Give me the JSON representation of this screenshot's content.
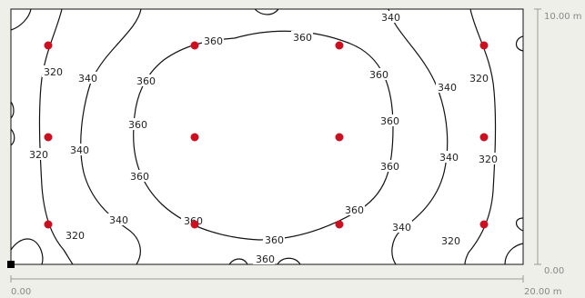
{
  "scales": {
    "y_top": "10.00 m",
    "y_bottom": "0.00",
    "x_left": "0.00",
    "x_right": "20.00 m"
  },
  "isoline_labels": {
    "l320": "320",
    "l340": "340",
    "l360": "360"
  },
  "colors": {
    "background": "#efefe9",
    "plot_area": "#ffffff",
    "isoline": "#111111",
    "luminaire": "#cc1020",
    "scale": "#999999",
    "origin_marker": "#000000"
  },
  "luminaires": {
    "count": 12,
    "rows": 3,
    "columns": 4
  }
}
